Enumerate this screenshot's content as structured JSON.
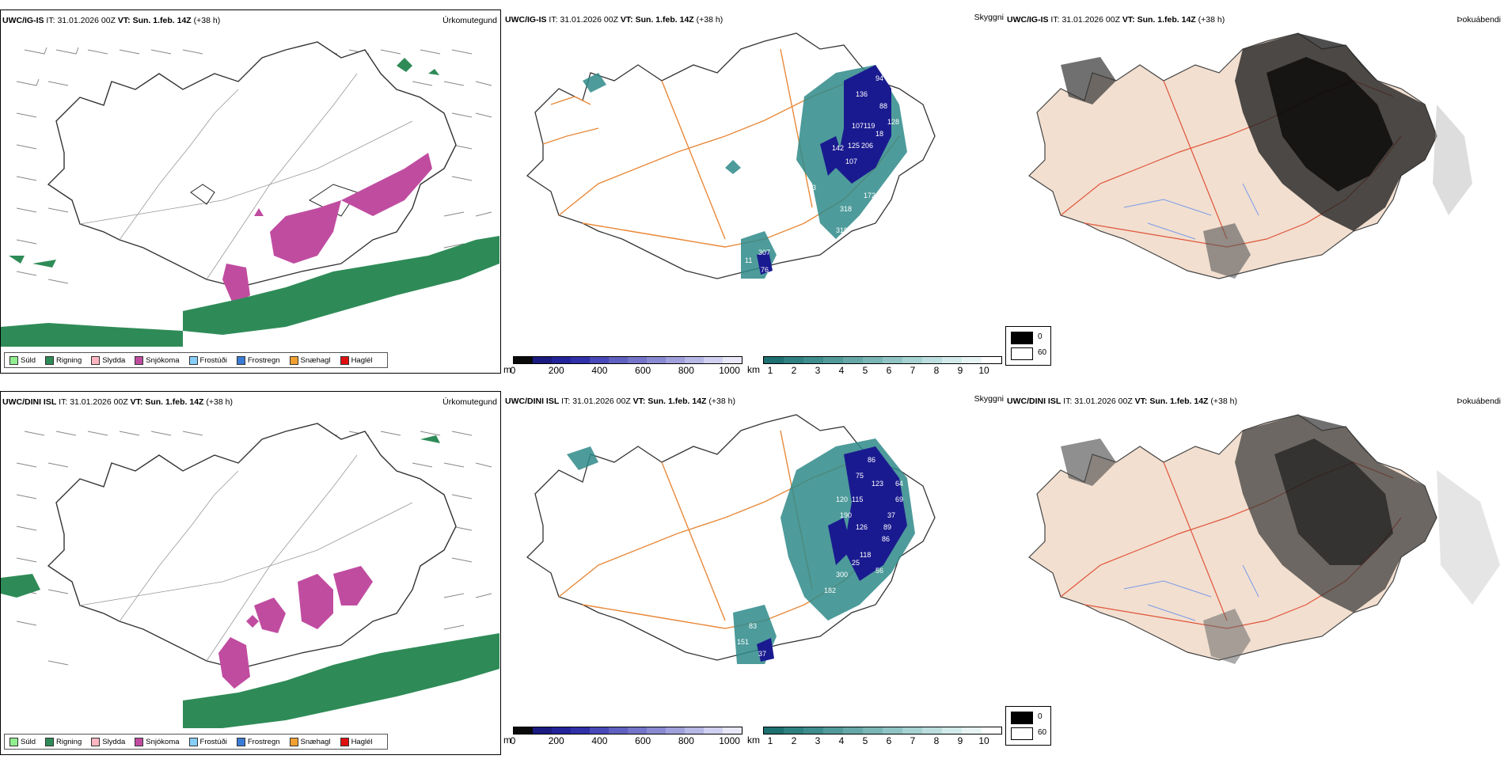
{
  "rows": [
    {
      "model": "UWC/IG-IS",
      "it_label": "IT:",
      "it_value": "31.01.2026 00Z",
      "vt_label": "VT:",
      "vt_value": "Sun. 1.feb. 14Z",
      "lead": "(+38 h)",
      "titles": {
        "weather": "Úrkomutegund",
        "vis": "Skyggni",
        "fog": "Þokuábendi"
      }
    },
    {
      "model": "UWC/DINI ISL",
      "it_label": "IT:",
      "it_value": "31.01.2026 00Z",
      "vt_label": "VT:",
      "vt_value": "Sun. 1.feb. 14Z",
      "lead": "(+38 h)",
      "titles": {
        "weather": "Úrkomutegund",
        "vis": "Skyggni",
        "fog": "Þokuábendi"
      }
    }
  ],
  "precip_legend": [
    {
      "label": "Súld",
      "color": "#90ee90"
    },
    {
      "label": "Rigning",
      "color": "#2e8b57"
    },
    {
      "label": "Slydda",
      "color": "#ffb6c1"
    },
    {
      "label": "Snjókoma",
      "color": "#c04ca0"
    },
    {
      "label": "Frostúði",
      "color": "#87cefa"
    },
    {
      "label": "Frostregn",
      "color": "#3a7bd5"
    },
    {
      "label": "Snæhagl",
      "color": "#f0a030"
    },
    {
      "label": "Haglél",
      "color": "#e01010"
    }
  ],
  "vis_bars": {
    "m_unit": "m",
    "m_ticks": [
      "0",
      "200",
      "400",
      "600",
      "800",
      "1000"
    ],
    "m_colors": [
      "#0a0a0a",
      "#1a1a80",
      "#23239a",
      "#3030a8",
      "#4848b8",
      "#6060c0",
      "#7474c8",
      "#8a8ad2",
      "#a0a0dc",
      "#b8b8e6",
      "#d0d0f0",
      "#e8e8f8"
    ],
    "km_unit": "km",
    "km_ticks": [
      "1",
      "2",
      "3",
      "4",
      "5",
      "6",
      "7",
      "8",
      "9",
      "10"
    ],
    "km_colors": [
      "#1e7070",
      "#2f8080",
      "#3f8c8c",
      "#529a9a",
      "#66a8a8",
      "#7ab6b6",
      "#90c4c4",
      "#a6d2d2",
      "#bcdede",
      "#d2eaea",
      "#e8f4f4",
      "#ffffff"
    ]
  },
  "vis_labels": {
    "top": [
      "94",
      "136",
      "88",
      "128",
      "107",
      "119",
      "18",
      "142",
      "125",
      "206",
      "107",
      "93",
      "172",
      "318",
      "319",
      "11",
      "307",
      "76"
    ],
    "bottom": [
      "86",
      "75",
      "64",
      "120",
      "115",
      "69",
      "190",
      "37",
      "126",
      "89",
      "86",
      "123",
      "25",
      "300",
      "182",
      "118",
      "56",
      "83",
      "151",
      "37"
    ]
  },
  "fog_legend": {
    "v0": "0",
    "v60": "60"
  }
}
